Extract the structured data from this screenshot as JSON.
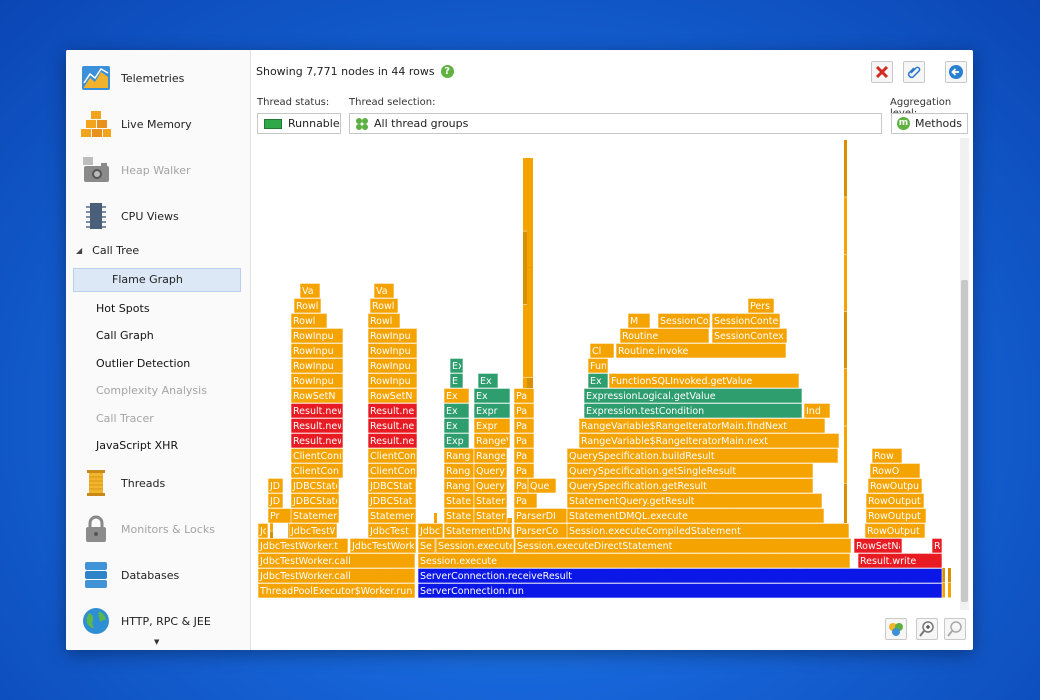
{
  "sidebar": {
    "sections": [
      {
        "label": "Telemetries",
        "icon": "telemetries-icon",
        "enabled": true
      },
      {
        "label": "Live Memory",
        "icon": "live-memory-icon",
        "enabled": true
      },
      {
        "label": "Heap Walker",
        "icon": "heap-walker-icon",
        "enabled": false
      },
      {
        "label": "CPU Views",
        "icon": "cpu-views-icon",
        "enabled": true
      }
    ],
    "call_tree": "Call Tree",
    "flame_graph": "Flame Graph",
    "cpu_items": [
      {
        "label": "Hot Spots",
        "enabled": true
      },
      {
        "label": "Call Graph",
        "enabled": true
      },
      {
        "label": "Outlier Detection",
        "enabled": true
      },
      {
        "label": "Complexity Analysis",
        "enabled": false
      },
      {
        "label": "Call Tracer",
        "enabled": false
      },
      {
        "label": "JavaScript XHR",
        "enabled": true
      }
    ],
    "sections_bottom": [
      {
        "label": "Threads",
        "icon": "threads-icon",
        "enabled": true
      },
      {
        "label": "Monitors & Locks",
        "icon": "lock-icon",
        "enabled": false
      },
      {
        "label": "Databases",
        "icon": "database-icon",
        "enabled": true
      },
      {
        "label": "HTTP, RPC & JEE",
        "icon": "globe-icon",
        "enabled": true
      }
    ]
  },
  "header": {
    "nodes_text": "Showing 7,771 nodes in 44 rows"
  },
  "filters": {
    "thread_status_label": "Thread status:",
    "thread_status_value": "Runnable",
    "thread_selection_label": "Thread selection:",
    "thread_selection_value": "All thread groups",
    "aggregation_label": "Aggregation level:",
    "aggregation_value": "Methods"
  },
  "colors": {
    "orange": "#f5a300",
    "red": "#e81b23",
    "green": "#2f9e6e",
    "blue": "#0b17e6",
    "status_green": "#2fa84a"
  },
  "flame": {
    "rows": [
      {
        "frames": [
          {
            "label": "ThreadPoolExecutor$Worker.run",
            "color": "orange"
          },
          {
            "label": "ServerConnection.run",
            "color": "blue"
          }
        ]
      },
      {
        "frames": [
          {
            "label": "JdbcTestWorker.call",
            "color": "orange"
          },
          {
            "label": "ServerConnection.receiveResult",
            "color": "blue"
          }
        ]
      },
      {
        "frames": [
          {
            "label": "JdbcTestWorker.call",
            "color": "orange"
          },
          {
            "label": "Session.execute",
            "color": "orange"
          },
          {
            "label": "Result.write",
            "color": "red"
          }
        ]
      },
      {
        "frames": [
          {
            "label": "JdbcTestWorker.t",
            "color": "orange"
          },
          {
            "label": "JdbcTestWork",
            "color": "orange"
          },
          {
            "label": "Se",
            "color": "orange"
          },
          {
            "label": "Session.execute",
            "color": "orange"
          },
          {
            "label": "Session.executeDirectStatement",
            "color": "orange"
          },
          {
            "label": "RowSetNavig",
            "color": "red"
          },
          {
            "label": "R",
            "color": "red"
          }
        ]
      },
      {
        "frames": [
          {
            "label": "JdbcT",
            "color": "orange"
          },
          {
            "label": "JdbcTestW",
            "color": "orange"
          },
          {
            "label": "JdbcTest",
            "color": "orange"
          },
          {
            "label": "JdbcTest",
            "color": "orange"
          },
          {
            "label": "StatementDN",
            "color": "orange"
          },
          {
            "label": "ParserCo",
            "color": "orange"
          },
          {
            "label": "Session.executeCompiledStatement",
            "color": "orange"
          },
          {
            "label": "RowOutput",
            "color": "orange"
          }
        ]
      },
      {
        "frames": [
          {
            "label": "Pr",
            "color": "orange"
          },
          {
            "label": "Statement",
            "color": "orange"
          },
          {
            "label": "Statemen",
            "color": "orange"
          },
          {
            "label": "Staten",
            "color": "orange"
          },
          {
            "label": "Statem",
            "color": "orange"
          },
          {
            "label": "ParserDI",
            "color": "orange"
          },
          {
            "label": "StatementDMQL.execute",
            "color": "orange"
          },
          {
            "label": "RowOutput",
            "color": "orange"
          }
        ]
      },
      {
        "frames": [
          {
            "label": "JD",
            "color": "orange"
          },
          {
            "label": "JDBCState",
            "color": "orange"
          },
          {
            "label": "JDBCStat",
            "color": "orange"
          },
          {
            "label": "Staten",
            "color": "orange"
          },
          {
            "label": "Statem",
            "color": "orange"
          },
          {
            "label": "Pa",
            "color": "orange"
          },
          {
            "label": "StatementQuery.getResult",
            "color": "orange"
          },
          {
            "label": "RowOutput",
            "color": "orange"
          }
        ]
      },
      {
        "frames": [
          {
            "label": "JD",
            "color": "orange"
          },
          {
            "label": "JDBCState",
            "color": "orange"
          },
          {
            "label": "JDBCStat",
            "color": "orange"
          },
          {
            "label": "Rang",
            "color": "orange"
          },
          {
            "label": "Query",
            "color": "orange"
          },
          {
            "label": "Pa",
            "color": "orange"
          },
          {
            "label": "Que",
            "color": "orange"
          },
          {
            "label": "QuerySpecification.getResult",
            "color": "orange"
          },
          {
            "label": "RowOutpu",
            "color": "orange"
          }
        ]
      },
      {
        "frames": [
          {
            "label": "ClientCon",
            "color": "orange"
          },
          {
            "label": "ClientCon",
            "color": "orange"
          },
          {
            "label": "Rang",
            "color": "orange"
          },
          {
            "label": "Query",
            "color": "orange"
          },
          {
            "label": "Pa",
            "color": "orange"
          },
          {
            "label": "QuerySpecification.getSingleResult",
            "color": "orange"
          },
          {
            "label": "RowO",
            "color": "orange"
          }
        ]
      },
      {
        "frames": [
          {
            "label": "ClientConn",
            "color": "orange"
          },
          {
            "label": "ClientCon",
            "color": "orange"
          },
          {
            "label": "Rang",
            "color": "orange"
          },
          {
            "label": "Range",
            "color": "orange"
          },
          {
            "label": "Pa",
            "color": "orange"
          },
          {
            "label": "QuerySpecification.buildResult",
            "color": "orange"
          },
          {
            "label": "Row",
            "color": "orange"
          }
        ]
      },
      {
        "frames": [
          {
            "label": "Result.new",
            "color": "red"
          },
          {
            "label": "Result.ne",
            "color": "red"
          },
          {
            "label": "Exp",
            "color": "green"
          },
          {
            "label": "RangeV",
            "color": "orange"
          },
          {
            "label": "Pa",
            "color": "orange"
          },
          {
            "label": "RangeVariable$RangeIteratorMain.next",
            "color": "orange"
          }
        ]
      },
      {
        "frames": [
          {
            "label": "Result.new",
            "color": "red"
          },
          {
            "label": "Result.ne",
            "color": "red"
          },
          {
            "label": "Ex",
            "color": "green"
          },
          {
            "label": "Expr",
            "color": "orange"
          },
          {
            "label": "Pa",
            "color": "orange"
          },
          {
            "label": "RangeVariable$RangeIteratorMain.findNext",
            "color": "orange"
          }
        ]
      },
      {
        "frames": [
          {
            "label": "Result.new",
            "color": "red"
          },
          {
            "label": "Result.ne",
            "color": "red"
          },
          {
            "label": "Ex",
            "color": "green"
          },
          {
            "label": "Expr",
            "color": "green"
          },
          {
            "label": "Pa",
            "color": "orange"
          },
          {
            "label": "Expression.testCondition",
            "color": "green"
          },
          {
            "label": "Ind",
            "color": "orange"
          }
        ]
      },
      {
        "frames": [
          {
            "label": "RowSetN",
            "color": "orange"
          },
          {
            "label": "RowSetN",
            "color": "orange"
          },
          {
            "label": "Ex",
            "color": "orange"
          },
          {
            "label": "Ex",
            "color": "green"
          },
          {
            "label": "Pa",
            "color": "orange"
          },
          {
            "label": "ExpressionLogical.getValue",
            "color": "green"
          }
        ]
      },
      {
        "frames": [
          {
            "label": "RowInpu",
            "color": "orange"
          },
          {
            "label": "RowInpu",
            "color": "orange"
          },
          {
            "label": "E",
            "color": "green"
          },
          {
            "label": "Ex",
            "color": "green"
          },
          {
            "label": "Ex",
            "color": "green"
          },
          {
            "label": "FunctionSQLInvoked.getValue",
            "color": "orange"
          }
        ]
      },
      {
        "frames": [
          {
            "label": "RowInpu",
            "color": "orange"
          },
          {
            "label": "RowInpu",
            "color": "orange"
          },
          {
            "label": "Ex",
            "color": "green"
          },
          {
            "label": "FunctionSQLInvoked.getValueInternal",
            "color": "orange"
          }
        ]
      },
      {
        "frames": [
          {
            "label": "RowInpu",
            "color": "orange"
          },
          {
            "label": "RowInpu",
            "color": "orange"
          },
          {
            "label": "Cl",
            "color": "orange"
          },
          {
            "label": "Routine.invoke",
            "color": "orange"
          }
        ]
      },
      {
        "frames": [
          {
            "label": "RowInpu",
            "color": "orange"
          },
          {
            "label": "RowInpu",
            "color": "orange"
          },
          {
            "label": "Routine",
            "color": "orange"
          },
          {
            "label": "SessionContex",
            "color": "orange"
          }
        ]
      },
      {
        "frames": [
          {
            "label": "Rowl",
            "color": "orange"
          },
          {
            "label": "Rowl",
            "color": "orange"
          },
          {
            "label": "M",
            "color": "orange"
          },
          {
            "label": "SessionCo",
            "color": "orange"
          },
          {
            "label": "SessionContex",
            "color": "orange"
          }
        ]
      },
      {
        "frames": [
          {
            "label": "Rowl",
            "color": "orange"
          },
          {
            "label": "Rowl",
            "color": "orange"
          },
          {
            "label": "Pers",
            "color": "orange"
          }
        ]
      },
      {
        "frames": [
          {
            "label": "Va",
            "color": "orange"
          },
          {
            "label": "Va",
            "color": "orange"
          }
        ]
      }
    ]
  }
}
